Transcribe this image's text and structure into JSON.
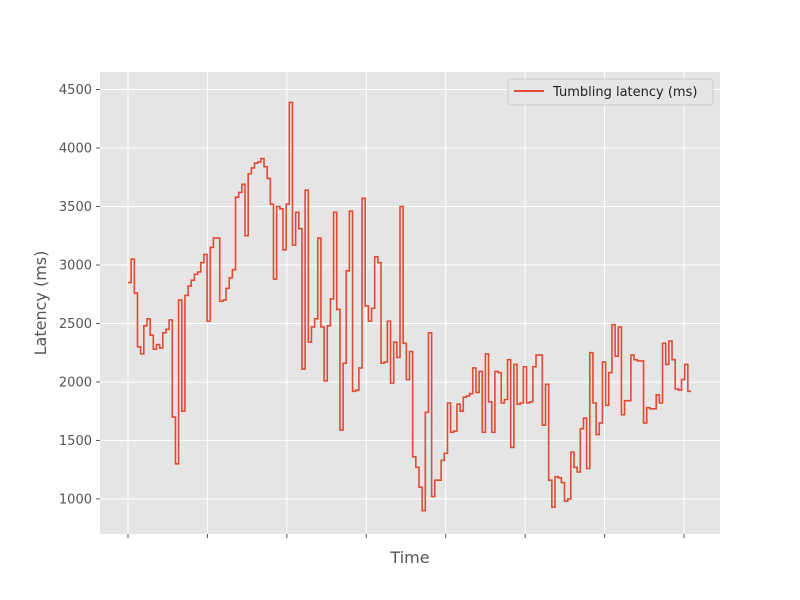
{
  "chart_data": {
    "type": "line",
    "title": "",
    "xlabel": "Time",
    "ylabel": "Latency (ms)",
    "ylim": [
      700,
      4650
    ],
    "yticks": [
      1000,
      1500,
      2000,
      2500,
      3000,
      3500,
      4000,
      4500
    ],
    "xtick_count": 8,
    "grid": true,
    "legend_position": "top-right",
    "step": true,
    "series": [
      {
        "name": "Tumbling latency (ms)",
        "color": "#e24a33",
        "values": [
          2850,
          3050,
          2760,
          2300,
          2240,
          2480,
          2540,
          2400,
          2280,
          2320,
          2290,
          2420,
          2450,
          2530,
          1700,
          1300,
          2700,
          1750,
          2740,
          2820,
          2870,
          2920,
          2940,
          3020,
          3090,
          2520,
          3150,
          3230,
          3230,
          2690,
          2700,
          2800,
          2890,
          2960,
          3580,
          3620,
          3690,
          3250,
          3780,
          3830,
          3870,
          3880,
          3910,
          3840,
          3740,
          3520,
          2880,
          3500,
          3480,
          3130,
          3520,
          4390,
          3170,
          3450,
          3310,
          2110,
          3640,
          2340,
          2470,
          2540,
          3230,
          2470,
          2010,
          2480,
          2710,
          3450,
          2620,
          1590,
          2160,
          2950,
          3460,
          1920,
          1930,
          2120,
          3570,
          2650,
          2520,
          2630,
          3070,
          3020,
          2160,
          2170,
          2520,
          1990,
          2340,
          2210,
          3500,
          2330,
          2020,
          2260,
          1360,
          1270,
          1100,
          900,
          1740,
          2420,
          1020,
          1160,
          1160,
          1330,
          1390,
          1820,
          1570,
          1580,
          1810,
          1750,
          1870,
          1880,
          1900,
          2120,
          1910,
          2090,
          1570,
          2240,
          1830,
          1570,
          2090,
          2080,
          1820,
          1850,
          2190,
          1440,
          2150,
          1810,
          1820,
          2130,
          1820,
          1830,
          2130,
          2230,
          2230,
          1630,
          1980,
          1160,
          930,
          1190,
          1180,
          1140,
          980,
          1000,
          1400,
          1270,
          1230,
          1600,
          1690,
          1260,
          2250,
          1820,
          1550,
          1650,
          2170,
          1800,
          2080,
          2490,
          2220,
          2470,
          1720,
          1840,
          1840,
          2230,
          2190,
          2180,
          2180,
          1650,
          1780,
          1770,
          1770,
          1890,
          1820,
          2330,
          2150,
          2350,
          2190,
          1940,
          1930,
          2020,
          2150,
          1920
        ]
      }
    ]
  }
}
